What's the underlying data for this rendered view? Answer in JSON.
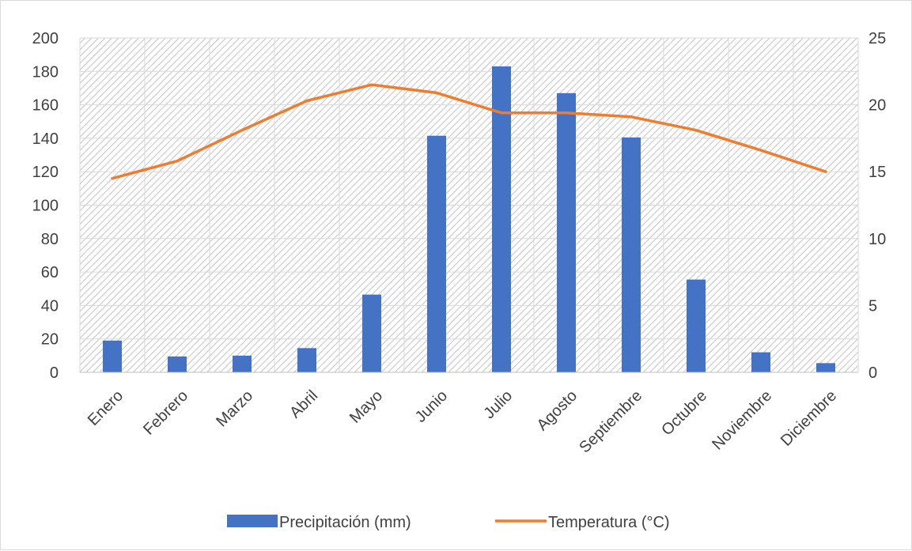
{
  "chart_data": {
    "type": "bar+line",
    "title": "",
    "categories": [
      "Enero",
      "Febrero",
      "Marzo",
      "Abril",
      "Mayo",
      "Junio",
      "Julio",
      "Agosto",
      "Septiembre",
      "Octubre",
      "Noviembre",
      "Diciembre"
    ],
    "series": [
      {
        "name": "Precipitación (mm)",
        "type": "bar",
        "axis": "left",
        "color": "#4472c4",
        "values": [
          19,
          9.5,
          10,
          14.5,
          46.5,
          141.5,
          183,
          167,
          140.5,
          55.5,
          12,
          5.5
        ]
      },
      {
        "name": "Temperatura (°C)",
        "type": "line",
        "axis": "right",
        "color": "#ed7d31",
        "values": [
          14.5,
          15.8,
          18.1,
          20.3,
          21.5,
          20.9,
          19.4,
          19.4,
          19.1,
          18.1,
          16.6,
          15.0
        ]
      }
    ],
    "y_left": {
      "min": 0,
      "max": 200,
      "step": 20,
      "ticks": [
        "0",
        "20",
        "40",
        "60",
        "80",
        "100",
        "120",
        "140",
        "160",
        "180",
        "200"
      ]
    },
    "y_right": {
      "min": 0,
      "max": 25,
      "step": 5,
      "ticks": [
        "0",
        "5",
        "10",
        "15",
        "20",
        "25"
      ]
    },
    "grid": true,
    "plot_background": "hatched light gray",
    "legend_position": "bottom"
  }
}
